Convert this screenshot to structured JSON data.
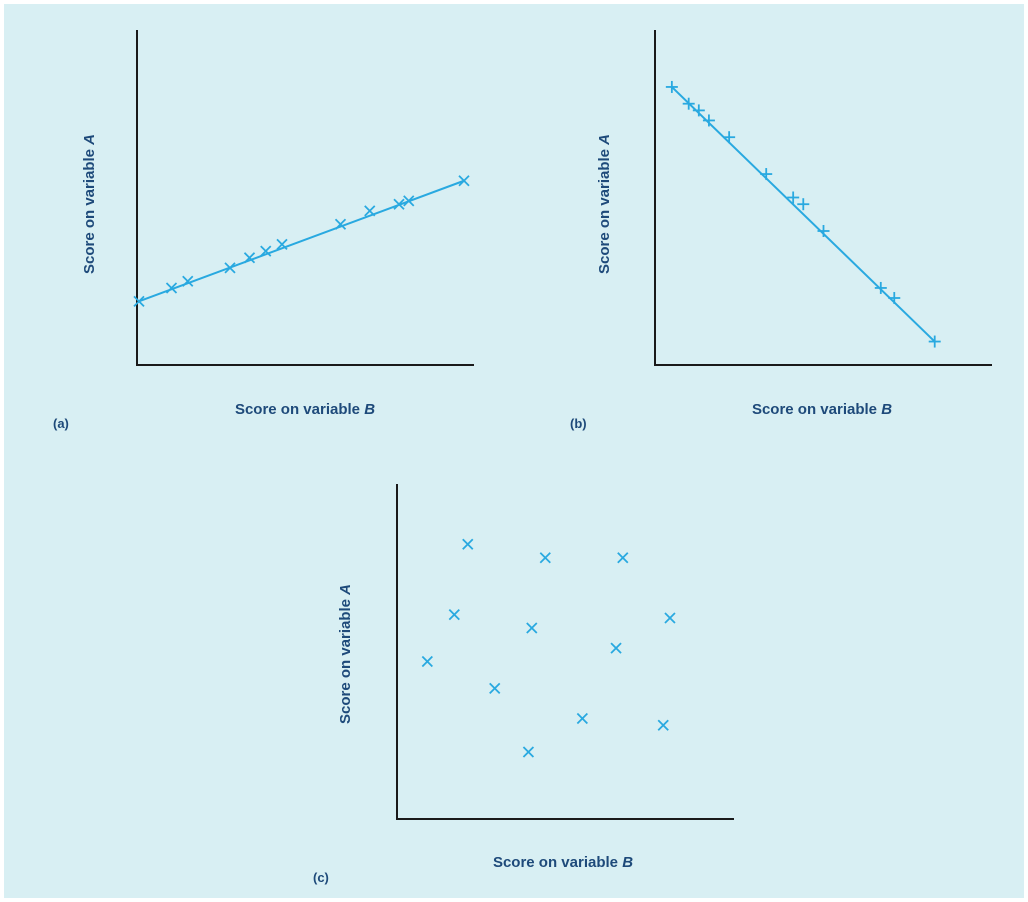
{
  "chart_data": [
    {
      "id": "a",
      "type": "scatter",
      "panel_label": "(a)",
      "xlabel_prefix": "Score on variable ",
      "xlabel_var": "B",
      "ylabel_prefix": "Score on variable ",
      "ylabel_var": "A",
      "marker": "x",
      "trend_line": true,
      "xlim": [
        0,
        100
      ],
      "ylim": [
        0,
        100
      ],
      "points": [
        [
          0,
          19
        ],
        [
          10,
          23
        ],
        [
          15,
          25
        ],
        [
          28,
          29
        ],
        [
          34,
          32
        ],
        [
          39,
          34
        ],
        [
          44,
          36
        ],
        [
          62,
          42
        ],
        [
          71,
          46
        ],
        [
          80,
          48
        ],
        [
          83,
          49
        ],
        [
          100,
          55
        ]
      ]
    },
    {
      "id": "b",
      "type": "scatter",
      "panel_label": "(b)",
      "xlabel_prefix": "Score on variable ",
      "xlabel_var": "B",
      "ylabel_prefix": "Score on variable ",
      "ylabel_var": "A",
      "marker": "+",
      "trend_line": true,
      "xlim": [
        0,
        100
      ],
      "ylim": [
        0,
        100
      ],
      "points": [
        [
          5,
          83
        ],
        [
          10,
          78
        ],
        [
          13,
          76
        ],
        [
          16,
          73
        ],
        [
          22,
          68
        ],
        [
          33,
          57
        ],
        [
          41,
          50
        ],
        [
          44,
          48
        ],
        [
          50,
          40
        ],
        [
          67,
          23
        ],
        [
          71,
          20
        ],
        [
          83,
          7
        ]
      ]
    },
    {
      "id": "c",
      "type": "scatter",
      "panel_label": "(c)",
      "xlabel_prefix": "Score on variable ",
      "xlabel_var": "B",
      "ylabel_prefix": "Score on variable ",
      "ylabel_var": "A",
      "marker": "x",
      "trend_line": false,
      "xlim": [
        0,
        100
      ],
      "ylim": [
        0,
        100
      ],
      "points": [
        [
          21,
          82
        ],
        [
          44,
          78
        ],
        [
          67,
          78
        ],
        [
          17,
          61
        ],
        [
          40,
          57
        ],
        [
          81,
          60
        ],
        [
          65,
          51
        ],
        [
          9,
          47
        ],
        [
          29,
          39
        ],
        [
          55,
          30
        ],
        [
          79,
          28
        ],
        [
          39,
          20
        ]
      ]
    }
  ]
}
